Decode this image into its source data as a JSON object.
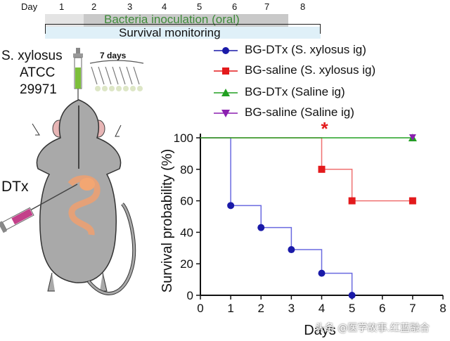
{
  "timeline": {
    "day_label": "Day",
    "days": [
      "1",
      "2",
      "3",
      "4",
      "5",
      "6",
      "7",
      "8"
    ],
    "inoculation_label": "Bacteria inoculation (oral)",
    "monitoring_label": "Survival monitoring"
  },
  "schematic": {
    "strain_lines": [
      "S. xylosus",
      "ATCC",
      "29971"
    ],
    "duration_label": "7 days",
    "injection_label": "DTx"
  },
  "legend": [
    {
      "label": "BG-DTx (S. xylosus ig)",
      "color": "#1a1aa8",
      "marker": "circle"
    },
    {
      "label": "BG-saline (S. xylosus ig)",
      "color": "#e31a1c",
      "marker": "square"
    },
    {
      "label": "BG-DTx (Saline ig)",
      "color": "#22a022",
      "marker": "triangle-up"
    },
    {
      "label": "BG-saline (Saline ig)",
      "color": "#8b1fb0",
      "marker": "triangle-down"
    }
  ],
  "chart_data": {
    "type": "line",
    "step": true,
    "xlabel": "Days",
    "ylabel": "Survival probability (%)",
    "xlim": [
      0,
      8
    ],
    "ylim": [
      0,
      100
    ],
    "xticks": [
      "0",
      "1",
      "2",
      "3",
      "4",
      "5",
      "6",
      "7",
      "8"
    ],
    "yticks": [
      "0",
      "20",
      "40",
      "60",
      "80",
      "100"
    ],
    "series": [
      {
        "name": "BG-DTx (S. xylosus ig)",
        "color": "#1a1aa8",
        "line_color": "#6a6ae0",
        "marker": "circle",
        "x": [
          0,
          1,
          2,
          3,
          4,
          5
        ],
        "y": [
          100,
          57,
          43,
          29,
          14,
          0
        ],
        "markers_at": [
          1,
          2,
          3,
          4,
          5
        ]
      },
      {
        "name": "BG-saline (S. xylosus ig)",
        "color": "#e31a1c",
        "line_color": "#ef7070",
        "marker": "square",
        "x": [
          0,
          4,
          5,
          7
        ],
        "y": [
          100,
          80,
          60,
          60
        ],
        "markers_at": [
          4,
          5,
          7
        ]
      },
      {
        "name": "BG-DTx (Saline ig)",
        "color": "#22a022",
        "line_color": "#22a022",
        "marker": "triangle-up",
        "x": [
          0,
          7
        ],
        "y": [
          100,
          100
        ],
        "markers_at": [
          7
        ]
      },
      {
        "name": "BG-saline (Saline ig)",
        "color": "#8b1fb0",
        "line_color": "#8b1fb0",
        "marker": "triangle-down",
        "x": [
          7
        ],
        "y": [
          100
        ],
        "markers_at": [
          7
        ]
      }
    ],
    "annotations": [
      {
        "text": "*",
        "x": 4,
        "y": 100,
        "color": "#e31a1c"
      }
    ]
  },
  "watermark": "头条 @医学故事.红蓝融合"
}
